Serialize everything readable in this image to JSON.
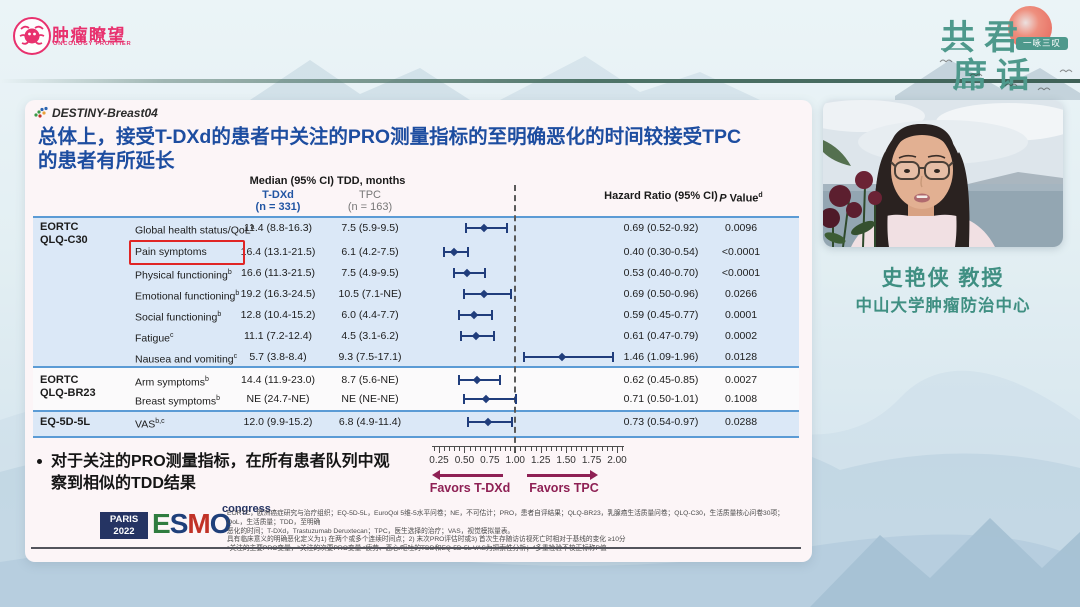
{
  "page": {
    "of_logo": {
      "cn": "肿瘤瞭望",
      "en": "ONCOLOGY FRONTIER"
    },
    "event_logo": {
      "line1": "共君",
      "line2": "席话",
      "badge": "一咏三叹"
    }
  },
  "slide": {
    "study": "DESTINY-Breast04",
    "title_line1": "总体上，接受T-DXd的患者中关注的PRO测量指标的至明确恶化的时间较接受TPC",
    "title_line2": "的患者有所延长",
    "bullet_line1": "对于关注的PRO测量指标，在所有患者队列中观",
    "bullet_line2": "察到相似的TDD结果",
    "footer": {
      "paris": "PARIS",
      "year": "2022",
      "esmo": "ESMO",
      "congress": "congress",
      "footnotes": [
        "EORTC，欧洲癌症研究与治疗组织；EQ-5D-5L，EuroQol 5维-5水平问卷；NE，不可估计；PRO，患者自评结果；QLQ-BR23，乳腺癌生活质量问卷；QLQ-C30，生活质量核心问卷30项；QoL，生活质量；TDD，至明确",
        "恶化的时间；T-DXd，Trastuzumab Deruxtecan；TPC，医生选择的治疗；VAS，视觉模拟量表。",
        "具有临床意义的明确恶化定义为1) 在两个或多个连续时间点；2) 末次PRO评估时或3) 首次生存随访访视死亡时相对于基线的变化 ≥10分",
        "ᵃ关注的主要PRO变量，ᵇ关注的次要PRO变量 ᶜ疲劳、恶心/呕吐的TDD和EQ-5D-5L VAS为探索性分析；ᵈ多重检验不校正标称P值"
      ]
    }
  },
  "table": {
    "median_header": "Median (95% CI) TDD, months",
    "tdxd_name": "T-DXd",
    "tdxd_n": "(n = 331)",
    "tpc_name": "TPC",
    "tpc_n": "(n = 163)",
    "hr_header": "Hazard Ratio (95% CI)",
    "p_header_italic": "P",
    "p_header_rest": " Value",
    "p_header_sup": "d",
    "sections": [
      {
        "group_line1": "EORTC",
        "group_line2": "QLQ-C30",
        "row_indexes": [
          0,
          1,
          2,
          3,
          4,
          5,
          6
        ]
      },
      {
        "group_line1": "EORTC",
        "group_line2": "QLQ-BR23",
        "row_indexes": [
          7,
          8
        ]
      },
      {
        "group_line1": "EQ-5D-5L",
        "group_line2": "",
        "row_indexes": [
          9
        ]
      }
    ]
  },
  "chart_data": {
    "type": "scatter",
    "subtype": "forest-plot",
    "title": "总体上，接受T-DXd的患者中关注的PRO测量指标的至明确恶化的时间较接受TPC的患者有所延长",
    "xlabel": "Hazard Ratio (95% CI)",
    "xlim": [
      0.25,
      2.0
    ],
    "x_ticks": [
      "0.25",
      "0.50",
      "0.75",
      "1.00",
      "1.25",
      "1.50",
      "1.75",
      "2.00"
    ],
    "reference_line": 1.0,
    "favors_left": "Favors T-DXd",
    "favors_right": "Favors TPC",
    "rows": [
      {
        "measure": "Global health status/QoL",
        "sup": "a",
        "tdxd": "11.4 (8.8-16.3)",
        "tpc": "7.5 (5.9-9.5)",
        "hr": 0.69,
        "lo": 0.52,
        "hi": 0.92,
        "hr_text": "0.69 (0.52-0.92)",
        "p": "0.0096",
        "highlight": false
      },
      {
        "measure": "Pain symptoms",
        "sup": "",
        "tdxd": "16.4 (13.1-21.5)",
        "tpc": "6.1 (4.2-7.5)",
        "hr": 0.4,
        "lo": 0.3,
        "hi": 0.54,
        "hr_text": "0.40 (0.30-0.54)",
        "p": "<0.0001",
        "highlight": true
      },
      {
        "measure": "Physical functioning",
        "sup": "b",
        "tdxd": "16.6 (11.3-21.5)",
        "tpc": "7.5 (4.9-9.5)",
        "hr": 0.53,
        "lo": 0.4,
        "hi": 0.7,
        "hr_text": "0.53 (0.40-0.70)",
        "p": "<0.0001",
        "highlight": false
      },
      {
        "measure": "Emotional functioning",
        "sup": "b",
        "tdxd": "19.2 (16.3-24.5)",
        "tpc": "10.5 (7.1-NE)",
        "hr": 0.69,
        "lo": 0.5,
        "hi": 0.96,
        "hr_text": "0.69 (0.50-0.96)",
        "p": "0.0266",
        "highlight": false
      },
      {
        "measure": "Social functioning",
        "sup": "b",
        "tdxd": "12.8 (10.4-15.2)",
        "tpc": "6.0 (4.4-7.7)",
        "hr": 0.59,
        "lo": 0.45,
        "hi": 0.77,
        "hr_text": "0.59 (0.45-0.77)",
        "p": "0.0001",
        "highlight": false
      },
      {
        "measure": "Fatigue",
        "sup": "c",
        "tdxd": "11.1 (7.2-12.4)",
        "tpc": "4.5 (3.1-6.2)",
        "hr": 0.61,
        "lo": 0.47,
        "hi": 0.79,
        "hr_text": "0.61 (0.47-0.79)",
        "p": "0.0002",
        "highlight": false
      },
      {
        "measure": "Nausea and vomiting",
        "sup": "c",
        "tdxd": "5.7 (3.8-8.4)",
        "tpc": "9.3 (7.5-17.1)",
        "hr": 1.46,
        "lo": 1.09,
        "hi": 1.96,
        "hr_text": "1.46 (1.09-1.96)",
        "p": "0.0128",
        "highlight": false
      },
      {
        "measure": "Arm symptoms",
        "sup": "b",
        "tdxd": "14.4 (11.9-23.0)",
        "tpc": "8.7 (5.6-NE)",
        "hr": 0.62,
        "lo": 0.45,
        "hi": 0.85,
        "hr_text": "0.62 (0.45-0.85)",
        "p": "0.0027",
        "highlight": false
      },
      {
        "measure": "Breast symptoms",
        "sup": "b",
        "tdxd": "NE (24.7-NE)",
        "tpc": "NE (NE-NE)",
        "hr": 0.71,
        "lo": 0.5,
        "hi": 1.01,
        "hr_text": "0.71 (0.50-1.01)",
        "p": "0.1008",
        "highlight": false
      },
      {
        "measure": "VAS",
        "sup": "b,c",
        "tdxd": "12.0 (9.9-15.2)",
        "tpc": "6.8 (4.9-11.4)",
        "hr": 0.73,
        "lo": 0.54,
        "hi": 0.97,
        "hr_text": "0.73 (0.54-0.97)",
        "p": "0.0288",
        "highlight": false
      }
    ]
  },
  "presenter": {
    "name": "史艳侠 教授",
    "affiliation": "中山大学肿瘤防治中心"
  },
  "colors": {
    "accent_blue": "#1d4da0",
    "navy_marker": "#203d7c",
    "band_blue": "#dbe8f7",
    "separator_blue": "#5b9bd5",
    "maroon": "#8e2054",
    "teal": "#4e998c",
    "pink_brand": "#e8316e",
    "highlight_red": "#e02525",
    "presenter_teal": "#3f8f82"
  }
}
